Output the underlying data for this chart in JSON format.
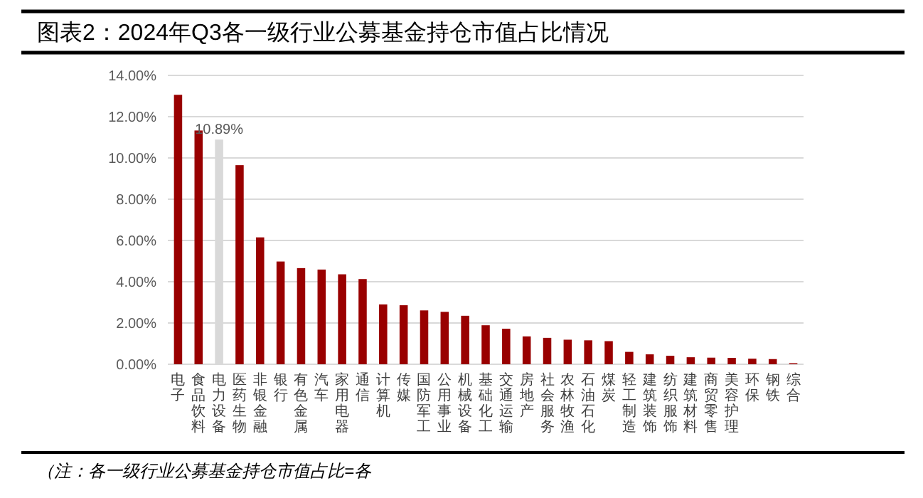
{
  "chart_data": {
    "type": "bar",
    "title": "图表2：2024年Q3各一级行业公募基金持仓市值占比情况",
    "categories": [
      "电子",
      "食品饮料",
      "电力设备",
      "医药生物",
      "非银金融",
      "银行",
      "有色金属",
      "汽车",
      "家用电器",
      "通信",
      "计算机",
      "传媒",
      "国防军工",
      "公用事业",
      "机械设备",
      "基础化工",
      "交通运输",
      "房地产",
      "社会服务",
      "农林牧渔",
      "石油石化",
      "煤炭",
      "轻工制造",
      "建筑装饰",
      "纺织服饰",
      "建筑材料",
      "商贸零售",
      "美容护理",
      "环保",
      "钢铁",
      "综合"
    ],
    "values": [
      13.06,
      11.33,
      10.89,
      9.65,
      6.15,
      4.98,
      4.66,
      4.59,
      4.36,
      4.13,
      2.9,
      2.86,
      2.61,
      2.54,
      2.35,
      1.89,
      1.72,
      1.35,
      1.28,
      1.19,
      1.16,
      1.12,
      0.6,
      0.48,
      0.41,
      0.34,
      0.32,
      0.31,
      0.27,
      0.25,
      0.05
    ],
    "colors": [
      "#990000",
      "#990000",
      "#d9d9d9",
      "#990000",
      "#990000",
      "#990000",
      "#990000",
      "#990000",
      "#990000",
      "#990000",
      "#990000",
      "#990000",
      "#990000",
      "#990000",
      "#990000",
      "#990000",
      "#990000",
      "#990000",
      "#990000",
      "#990000",
      "#990000",
      "#990000",
      "#990000",
      "#990000",
      "#990000",
      "#990000",
      "#990000",
      "#990000",
      "#990000",
      "#990000",
      "#990000"
    ],
    "value_labels": [
      null,
      null,
      "10.89%",
      null,
      null,
      null,
      null,
      null,
      null,
      null,
      null,
      null,
      null,
      null,
      null,
      null,
      null,
      null,
      null,
      null,
      null,
      null,
      null,
      null,
      null,
      null,
      null,
      null,
      null,
      null,
      null
    ],
    "ylim": [
      0,
      14
    ],
    "yticks": [
      {
        "value": 0,
        "label": "0.00%"
      },
      {
        "value": 2,
        "label": "2.00%"
      },
      {
        "value": 4,
        "label": "4.00%"
      },
      {
        "value": 6,
        "label": "6.00%"
      },
      {
        "value": 8,
        "label": "8.00%"
      },
      {
        "value": 10,
        "label": "10.00%"
      },
      {
        "value": 12,
        "label": "12.00%"
      },
      {
        "value": 14,
        "label": "14.00%"
      }
    ],
    "grid": "y",
    "annotations": [
      "（注：各一级行业公募基金持仓市值占比=各"
    ]
  }
}
